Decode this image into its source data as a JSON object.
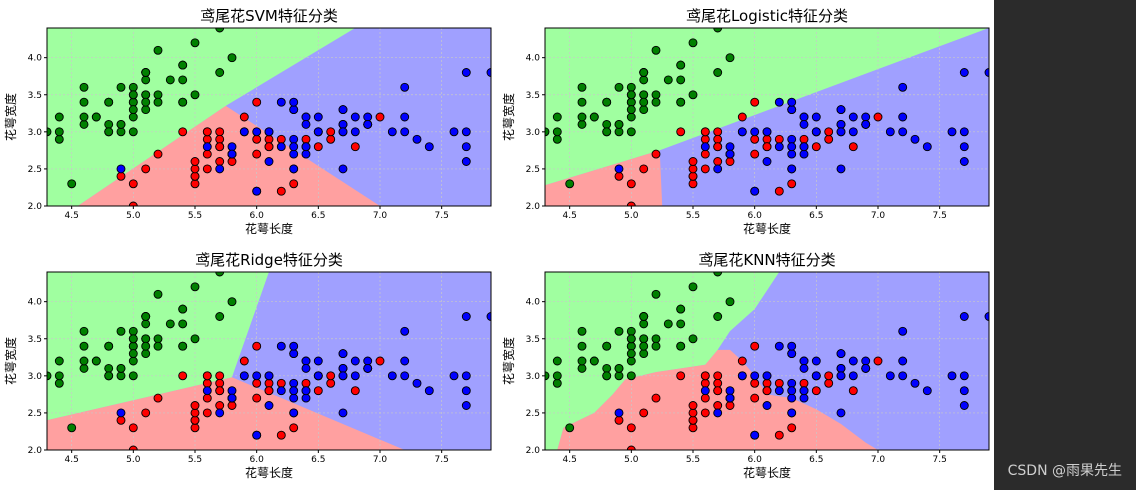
{
  "colors": {
    "region_setosa": "#a0ffa0",
    "region_versicolor": "#ffa0a0",
    "region_virginica": "#a0a0ff",
    "point_setosa": "#008000",
    "point_versicolor": "#ff0000",
    "point_virginica": "#0000ff",
    "grid": "#c8c8c8"
  },
  "watermark": "CSDN @雨果先生",
  "chart_data": [
    {
      "type": "scatter",
      "title": "鸢尾花SVM特征分类",
      "xlabel": "花萼长度",
      "ylabel": "花萼宽度",
      "xlim": [
        4.3,
        7.9
      ],
      "ylim": [
        2.0,
        4.4
      ],
      "xticks": [
        4.5,
        5.0,
        5.5,
        6.0,
        6.5,
        7.0,
        7.5
      ],
      "yticks": [
        2.0,
        2.5,
        3.0,
        3.5,
        4.0
      ],
      "grid": true,
      "decision_regions": [
        {
          "class": "setosa",
          "polygon": [
            [
              4.3,
              2.0
            ],
            [
              4.3,
              4.4
            ],
            [
              5.95,
              4.4
            ],
            [
              5.95,
              4.4
            ],
            [
              5.75,
              3.35
            ],
            [
              4.3,
              2.0
            ]
          ]
        },
        {
          "class": "setosa",
          "polygon": [
            [
              4.3,
              4.4
            ],
            [
              6.8,
              4.4
            ],
            [
              5.75,
              3.35
            ],
            [
              4.55,
              2.0
            ],
            [
              4.3,
              2.0
            ]
          ]
        },
        {
          "class": "virginica",
          "polygon": [
            [
              6.8,
              4.4
            ],
            [
              7.9,
              4.4
            ],
            [
              7.9,
              2.0
            ],
            [
              7.0,
              2.0
            ],
            [
              5.75,
              3.35
            ]
          ]
        },
        {
          "class": "versicolor",
          "polygon": [
            [
              4.55,
              2.0
            ],
            [
              7.0,
              2.0
            ],
            [
              5.75,
              3.35
            ]
          ]
        }
      ]
    },
    {
      "type": "scatter",
      "title": "鸢尾花Logistic特征分类",
      "xlabel": "花萼长度",
      "ylabel": "花萼宽度",
      "xlim": [
        4.3,
        7.9
      ],
      "ylim": [
        2.0,
        4.4
      ],
      "xticks": [
        4.5,
        5.0,
        5.5,
        6.0,
        6.5,
        7.0,
        7.5
      ],
      "yticks": [
        2.0,
        2.5,
        3.0,
        3.5,
        4.0
      ],
      "grid": true,
      "decision_regions": [
        {
          "class": "setosa",
          "polygon": [
            [
              4.3,
              2.0
            ],
            [
              4.3,
              4.4
            ],
            [
              7.9,
              4.4
            ],
            [
              5.23,
              2.75
            ],
            [
              4.3,
              2.28
            ]
          ]
        },
        {
          "class": "virginica",
          "polygon": [
            [
              7.9,
              4.4
            ],
            [
              7.9,
              2.0
            ],
            [
              5.25,
              2.0
            ],
            [
              5.23,
              2.75
            ]
          ]
        },
        {
          "class": "versicolor",
          "polygon": [
            [
              4.3,
              2.28
            ],
            [
              5.23,
              2.75
            ],
            [
              5.25,
              2.0
            ],
            [
              4.3,
              2.0
            ]
          ]
        }
      ]
    },
    {
      "type": "scatter",
      "title": "鸢尾花Ridge特征分类",
      "xlabel": "花萼长度",
      "ylabel": "花萼宽度",
      "xlim": [
        4.3,
        7.9
      ],
      "ylim": [
        2.0,
        4.4
      ],
      "xticks": [
        4.5,
        5.0,
        5.5,
        6.0,
        6.5,
        7.0,
        7.5
      ],
      "yticks": [
        2.0,
        2.5,
        3.0,
        3.5,
        4.0
      ],
      "grid": true,
      "decision_regions": [
        {
          "class": "setosa",
          "polygon": [
            [
              4.3,
              2.4
            ],
            [
              4.3,
              4.4
            ],
            [
              6.1,
              4.4
            ],
            [
              5.8,
              2.98
            ]
          ]
        },
        {
          "class": "virginica",
          "polygon": [
            [
              6.1,
              4.4
            ],
            [
              7.9,
              4.4
            ],
            [
              7.9,
              2.0
            ],
            [
              7.2,
              2.0
            ],
            [
              5.8,
              2.98
            ]
          ]
        },
        {
          "class": "versicolor",
          "polygon": [
            [
              4.3,
              2.0
            ],
            [
              4.3,
              2.4
            ],
            [
              5.8,
              2.98
            ],
            [
              7.2,
              2.0
            ]
          ]
        }
      ]
    },
    {
      "type": "scatter",
      "title": "鸢尾花KNN特征分类",
      "xlabel": "花萼长度",
      "ylabel": "花萼宽度",
      "xlim": [
        4.3,
        7.9
      ],
      "ylim": [
        2.0,
        4.4
      ],
      "xticks": [
        4.5,
        5.0,
        5.5,
        6.0,
        6.5,
        7.0,
        7.5
      ],
      "yticks": [
        2.0,
        2.5,
        3.0,
        3.5,
        4.0
      ],
      "grid": true,
      "decision_regions": [
        {
          "class": "setosa",
          "polygon": [
            [
              4.3,
              2.0
            ],
            [
              4.3,
              4.4
            ],
            [
              6.2,
              4.4
            ],
            [
              6.0,
              3.9
            ],
            [
              5.8,
              3.6
            ],
            [
              5.7,
              3.35
            ],
            [
              5.6,
              3.15
            ],
            [
              5.2,
              3.05
            ],
            [
              4.95,
              2.95
            ],
            [
              4.85,
              2.75
            ],
            [
              4.7,
              2.5
            ],
            [
              4.45,
              2.3
            ],
            [
              4.4,
              2.0
            ]
          ]
        },
        {
          "class": "virginica",
          "polygon": [
            [
              6.2,
              4.4
            ],
            [
              7.9,
              4.4
            ],
            [
              7.9,
              2.0
            ],
            [
              7.0,
              2.0
            ],
            [
              6.9,
              2.1
            ],
            [
              6.7,
              2.35
            ],
            [
              6.5,
              2.55
            ],
            [
              6.3,
              2.7
            ],
            [
              6.1,
              2.75
            ],
            [
              6.0,
              3.0
            ],
            [
              5.9,
              3.2
            ],
            [
              5.8,
              3.35
            ],
            [
              5.7,
              3.35
            ],
            [
              5.8,
              3.6
            ],
            [
              6.0,
              3.9
            ]
          ]
        },
        {
          "class": "versicolor",
          "polygon": [
            [
              4.4,
              2.0
            ],
            [
              4.45,
              2.3
            ],
            [
              4.7,
              2.5
            ],
            [
              4.85,
              2.75
            ],
            [
              4.95,
              2.95
            ],
            [
              5.2,
              3.05
            ],
            [
              5.6,
              3.15
            ],
            [
              5.7,
              3.35
            ],
            [
              5.8,
              3.35
            ],
            [
              5.9,
              3.2
            ],
            [
              6.0,
              3.0
            ],
            [
              6.1,
              2.75
            ],
            [
              6.3,
              2.7
            ],
            [
              6.5,
              2.55
            ],
            [
              6.7,
              2.35
            ],
            [
              6.9,
              2.1
            ],
            [
              7.0,
              2.0
            ]
          ]
        }
      ]
    }
  ],
  "points": {
    "setosa": [
      [
        5.1,
        3.5
      ],
      [
        4.9,
        3.0
      ],
      [
        4.7,
        3.2
      ],
      [
        4.6,
        3.1
      ],
      [
        5.0,
        3.6
      ],
      [
        5.4,
        3.9
      ],
      [
        4.6,
        3.4
      ],
      [
        5.0,
        3.4
      ],
      [
        4.4,
        2.9
      ],
      [
        4.9,
        3.1
      ],
      [
        5.4,
        3.7
      ],
      [
        4.8,
        3.4
      ],
      [
        4.8,
        3.0
      ],
      [
        4.3,
        3.0
      ],
      [
        5.8,
        4.0
      ],
      [
        5.7,
        4.4
      ],
      [
        5.4,
        3.9
      ],
      [
        5.1,
        3.5
      ],
      [
        5.7,
        3.8
      ],
      [
        5.1,
        3.8
      ],
      [
        5.4,
        3.4
      ],
      [
        5.1,
        3.7
      ],
      [
        4.6,
        3.6
      ],
      [
        5.1,
        3.3
      ],
      [
        4.8,
        3.4
      ],
      [
        5.0,
        3.0
      ],
      [
        5.0,
        3.4
      ],
      [
        5.2,
        3.5
      ],
      [
        5.2,
        3.4
      ],
      [
        4.7,
        3.2
      ],
      [
        4.8,
        3.1
      ],
      [
        5.4,
        3.4
      ],
      [
        5.2,
        4.1
      ],
      [
        5.5,
        4.2
      ],
      [
        4.9,
        3.1
      ],
      [
        5.0,
        3.2
      ],
      [
        5.5,
        3.5
      ],
      [
        4.9,
        3.6
      ],
      [
        4.4,
        3.0
      ],
      [
        5.1,
        3.4
      ],
      [
        5.0,
        3.5
      ],
      [
        4.5,
        2.3
      ],
      [
        4.4,
        3.2
      ],
      [
        5.0,
        3.5
      ],
      [
        5.1,
        3.8
      ],
      [
        4.8,
        3.0
      ],
      [
        5.1,
        3.8
      ],
      [
        4.6,
        3.2
      ],
      [
        5.3,
        3.7
      ],
      [
        5.0,
        3.3
      ]
    ],
    "versicolor": [
      [
        7.0,
        3.2
      ],
      [
        6.4,
        3.2
      ],
      [
        6.9,
        3.1
      ],
      [
        5.5,
        2.3
      ],
      [
        6.5,
        2.8
      ],
      [
        5.7,
        2.8
      ],
      [
        6.3,
        3.3
      ],
      [
        4.9,
        2.4
      ],
      [
        6.6,
        2.9
      ],
      [
        5.2,
        2.7
      ],
      [
        5.0,
        2.0
      ],
      [
        5.9,
        3.0
      ],
      [
        6.0,
        2.2
      ],
      [
        6.1,
        2.9
      ],
      [
        5.6,
        2.9
      ],
      [
        6.7,
        3.1
      ],
      [
        5.6,
        3.0
      ],
      [
        5.8,
        2.7
      ],
      [
        6.2,
        2.2
      ],
      [
        5.6,
        2.5
      ],
      [
        5.9,
        3.2
      ],
      [
        6.1,
        2.8
      ],
      [
        6.3,
        2.5
      ],
      [
        6.1,
        2.8
      ],
      [
        6.4,
        2.9
      ],
      [
        6.6,
        3.0
      ],
      [
        6.8,
        2.8
      ],
      [
        6.7,
        3.0
      ],
      [
        6.0,
        2.9
      ],
      [
        5.7,
        2.6
      ],
      [
        5.5,
        2.4
      ],
      [
        5.5,
        2.4
      ],
      [
        5.8,
        2.7
      ],
      [
        6.0,
        2.7
      ],
      [
        5.4,
        3.0
      ],
      [
        6.0,
        3.4
      ],
      [
        6.7,
        3.1
      ],
      [
        6.3,
        2.3
      ],
      [
        5.6,
        3.0
      ],
      [
        5.5,
        2.5
      ],
      [
        5.5,
        2.6
      ],
      [
        6.1,
        3.0
      ],
      [
        5.8,
        2.6
      ],
      [
        5.0,
        2.3
      ],
      [
        5.6,
        2.7
      ],
      [
        5.7,
        3.0
      ],
      [
        5.7,
        2.9
      ],
      [
        6.2,
        2.9
      ],
      [
        5.1,
        2.5
      ],
      [
        5.7,
        2.8
      ]
    ],
    "virginica": [
      [
        6.3,
        3.3
      ],
      [
        5.8,
        2.7
      ],
      [
        7.1,
        3.0
      ],
      [
        6.3,
        2.9
      ],
      [
        6.5,
        3.0
      ],
      [
        7.6,
        3.0
      ],
      [
        4.9,
        2.5
      ],
      [
        7.3,
        2.9
      ],
      [
        6.7,
        2.5
      ],
      [
        7.2,
        3.6
      ],
      [
        6.5,
        3.2
      ],
      [
        6.4,
        2.7
      ],
      [
        6.8,
        3.0
      ],
      [
        5.7,
        2.5
      ],
      [
        5.8,
        2.8
      ],
      [
        6.4,
        3.2
      ],
      [
        6.5,
        3.0
      ],
      [
        7.7,
        3.8
      ],
      [
        7.7,
        2.6
      ],
      [
        6.0,
        2.2
      ],
      [
        6.9,
        3.2
      ],
      [
        5.6,
        2.8
      ],
      [
        7.7,
        2.8
      ],
      [
        6.3,
        2.7
      ],
      [
        6.7,
        3.3
      ],
      [
        7.2,
        3.2
      ],
      [
        6.2,
        2.8
      ],
      [
        6.1,
        3.0
      ],
      [
        6.4,
        2.8
      ],
      [
        7.2,
        3.0
      ],
      [
        7.4,
        2.8
      ],
      [
        7.9,
        3.8
      ],
      [
        6.4,
        2.8
      ],
      [
        6.3,
        2.8
      ],
      [
        6.1,
        2.6
      ],
      [
        7.7,
        3.0
      ],
      [
        6.3,
        3.4
      ],
      [
        6.4,
        3.1
      ],
      [
        6.0,
        3.0
      ],
      [
        6.9,
        3.1
      ],
      [
        6.7,
        3.1
      ],
      [
        6.9,
        3.1
      ],
      [
        5.8,
        2.7
      ],
      [
        6.8,
        3.2
      ],
      [
        6.7,
        3.3
      ],
      [
        6.7,
        3.0
      ],
      [
        6.3,
        2.5
      ],
      [
        6.5,
        3.0
      ],
      [
        6.2,
        3.4
      ],
      [
        5.9,
        3.0
      ]
    ]
  }
}
